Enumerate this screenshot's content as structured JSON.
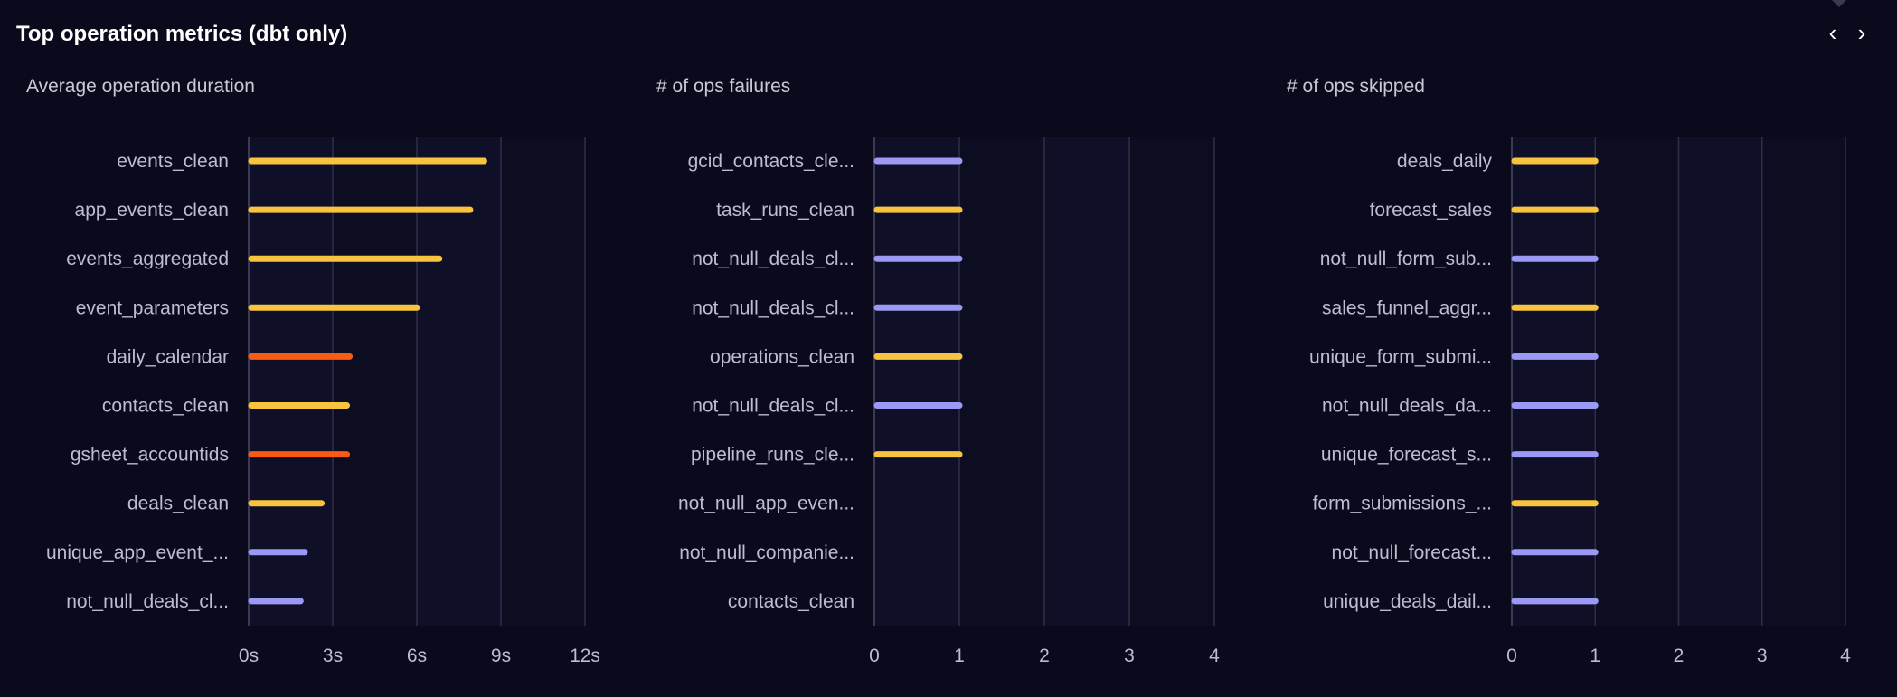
{
  "header": {
    "title": "Top operation metrics (dbt only)",
    "prev_icon": "chevron-left-icon",
    "next_icon": "chevron-right-icon",
    "prev_glyph": "‹",
    "next_glyph": "›"
  },
  "colors": {
    "background": "#0b0a1c",
    "plot_bg": "#0f0f28",
    "grid": "#2e2e46",
    "yellow": "#f8c43e",
    "orange": "#fa5a12",
    "purple": "#9b99f3",
    "label": "#bdbdd0"
  },
  "chart_data": [
    {
      "type": "bar",
      "orientation": "horizontal",
      "title": "Average operation duration",
      "categories": [
        "events_clean",
        "app_events_clean",
        "events_aggregated",
        "event_parameters",
        "daily_calendar",
        "contacts_clean",
        "gsheet_accountids",
        "deals_clean",
        "unique_app_event_...",
        "not_null_deals_cl..."
      ],
      "values": [
        8.4,
        7.9,
        6.8,
        6.0,
        3.6,
        3.5,
        3.5,
        2.6,
        2.0,
        1.85
      ],
      "colors": [
        "yellow",
        "yellow",
        "yellow",
        "yellow",
        "orange",
        "yellow",
        "orange",
        "yellow",
        "purple",
        "purple"
      ],
      "xlim": [
        0,
        12
      ],
      "ticks": [
        0,
        3,
        6,
        9,
        12
      ],
      "tick_labels": [
        "0s",
        "3s",
        "6s",
        "9s",
        "12s"
      ],
      "grid": true
    },
    {
      "type": "bar",
      "orientation": "horizontal",
      "title": "# of ops failures",
      "categories": [
        "gcid_contacts_cle...",
        "task_runs_clean",
        "not_null_deals_cl...",
        "not_null_deals_cl...",
        "operations_clean",
        "not_null_deals_cl...",
        "pipeline_runs_cle...",
        "not_null_app_even...",
        "not_null_companie...",
        "contacts_clean"
      ],
      "values": [
        1,
        1,
        1,
        1,
        1,
        1,
        1,
        0,
        0,
        0
      ],
      "colors": [
        "purple",
        "yellow",
        "purple",
        "purple",
        "yellow",
        "purple",
        "yellow",
        "yellow",
        "yellow",
        "yellow"
      ],
      "xlim": [
        0,
        4
      ],
      "ticks": [
        0,
        1,
        2,
        3,
        4
      ],
      "tick_labels": [
        "0",
        "1",
        "2",
        "3",
        "4"
      ],
      "grid": true
    },
    {
      "type": "bar",
      "orientation": "horizontal",
      "title": "# of ops skipped",
      "categories": [
        "deals_daily",
        "forecast_sales",
        "not_null_form_sub...",
        "sales_funnel_aggr...",
        "unique_form_submi...",
        "not_null_deals_da...",
        "unique_forecast_s...",
        "form_submissions_...",
        "not_null_forecast...",
        "unique_deals_dail..."
      ],
      "values": [
        1,
        1,
        1,
        1,
        1,
        1,
        1,
        1,
        1,
        1
      ],
      "colors": [
        "yellow",
        "yellow",
        "purple",
        "yellow",
        "purple",
        "purple",
        "purple",
        "yellow",
        "purple",
        "purple"
      ],
      "xlim": [
        0,
        4
      ],
      "ticks": [
        0,
        1,
        2,
        3,
        4
      ],
      "tick_labels": [
        "0",
        "1",
        "2",
        "3",
        "4"
      ],
      "grid": true
    }
  ]
}
